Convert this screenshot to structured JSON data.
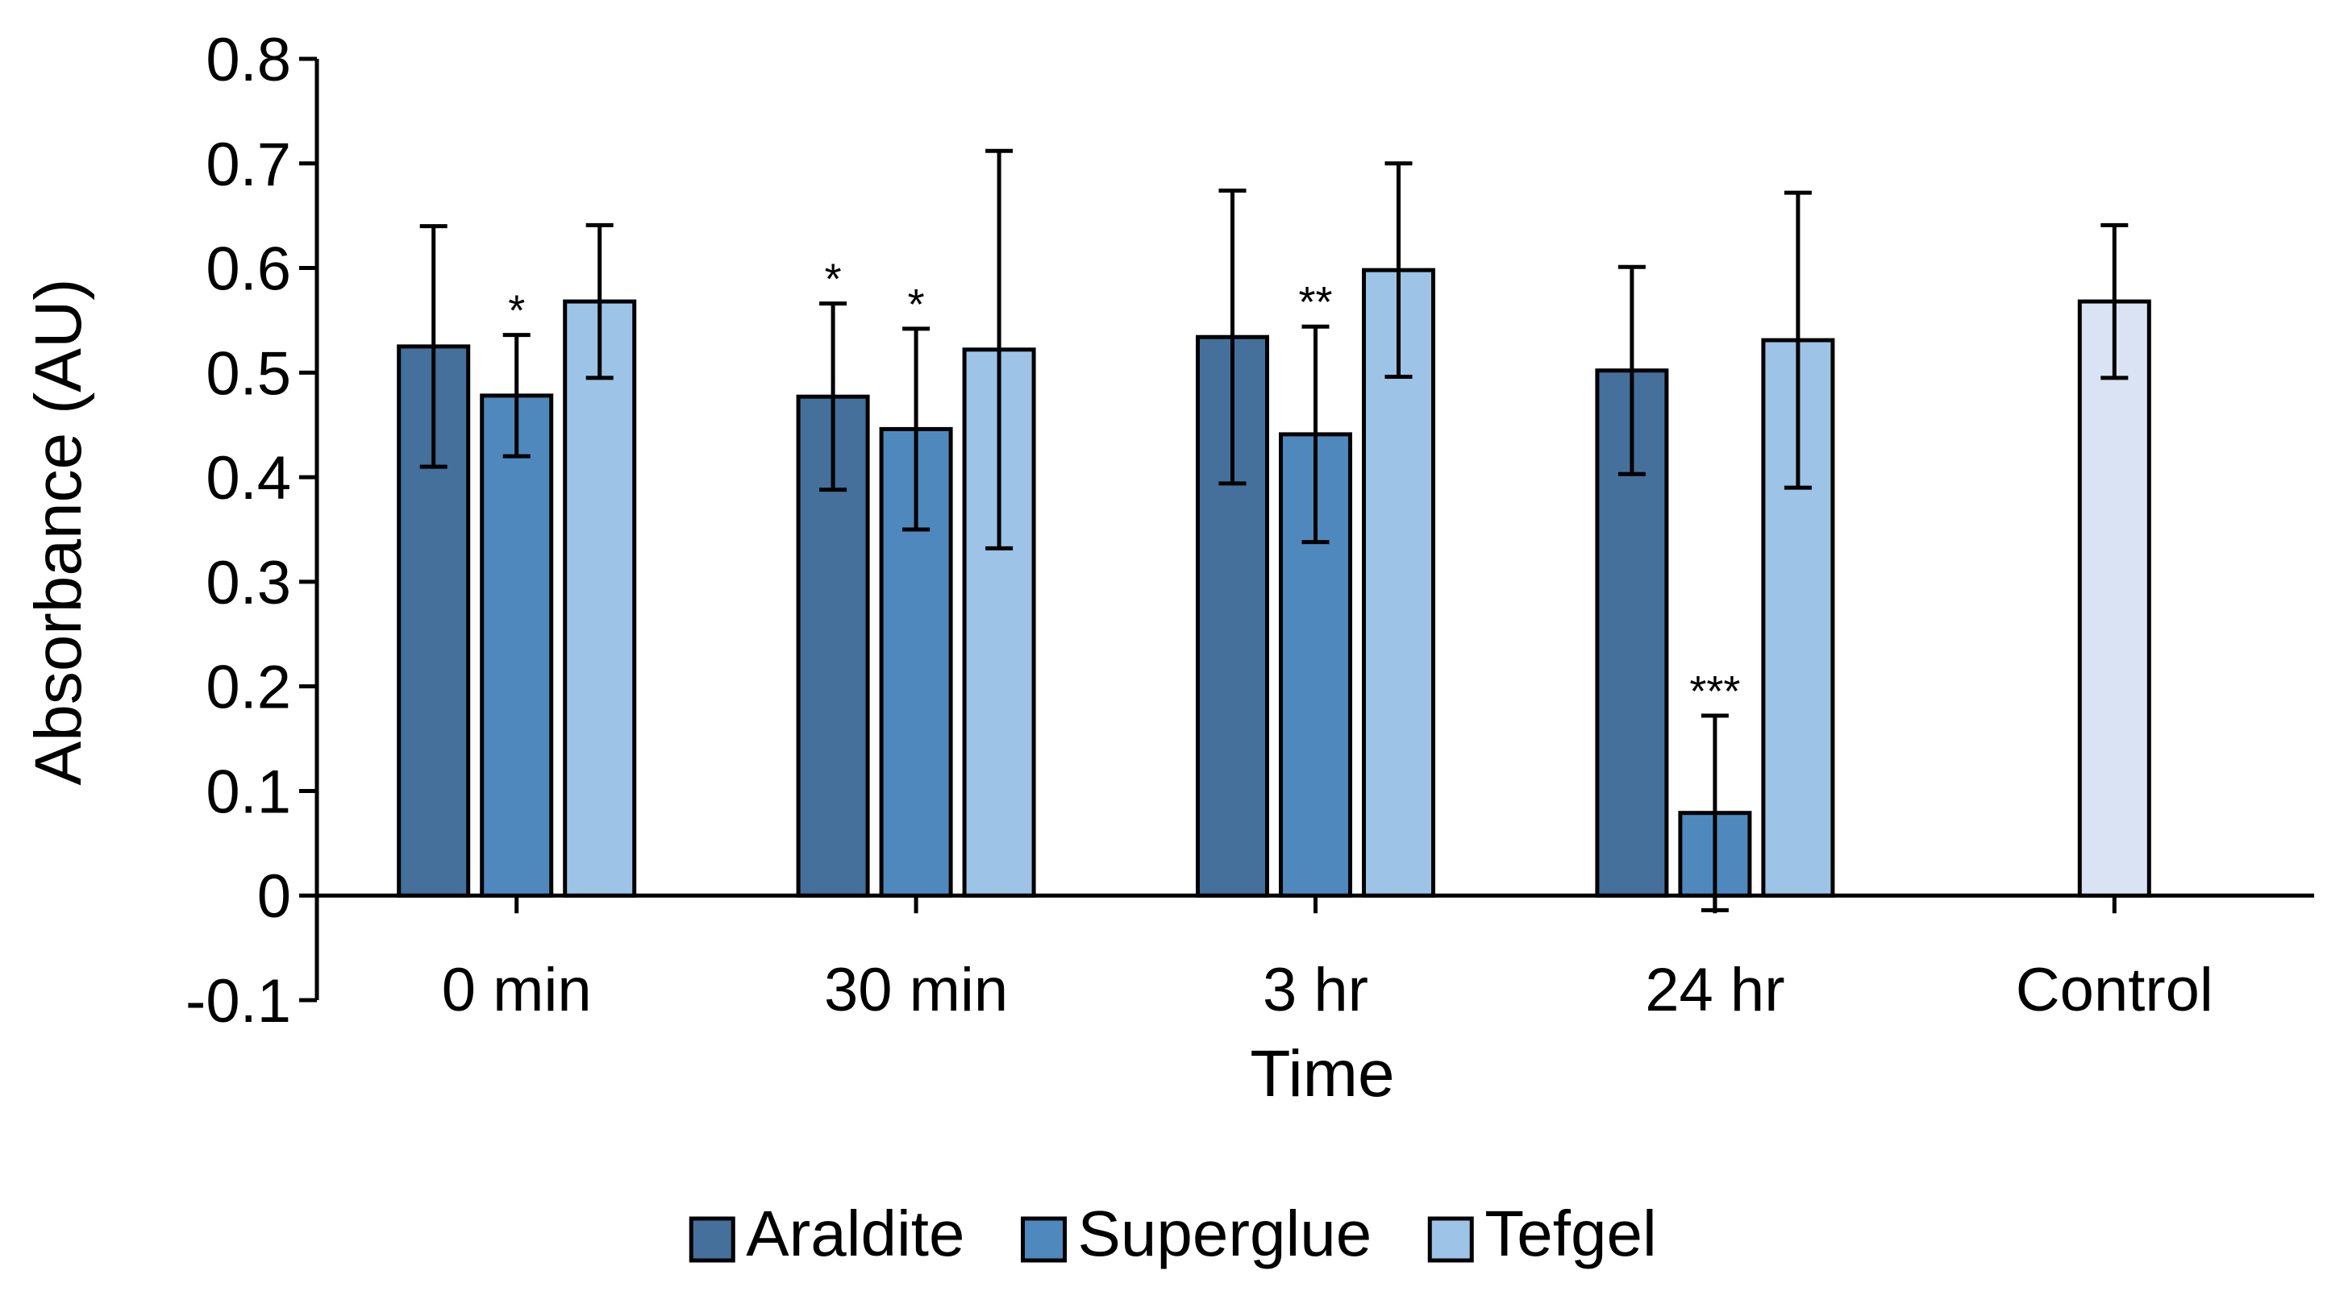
{
  "chart_data": {
    "type": "bar",
    "title": "",
    "xlabel": "Time",
    "ylabel": "Absorbance (AU)",
    "ylim": [
      -0.1,
      0.8
    ],
    "yticks": [
      -0.1,
      0,
      0.1,
      0.2,
      0.3,
      0.4,
      0.5,
      0.6,
      0.7,
      0.8
    ],
    "ytick_labels": [
      "-0.1",
      "0",
      "0.1",
      "0.2",
      "0.3",
      "0.4",
      "0.5",
      "0.6",
      "0.7",
      "0.8"
    ],
    "grid": false,
    "legend_position": "bottom",
    "categories": [
      "0 min",
      "30 min",
      "3 hr",
      "24 hr",
      "Control"
    ],
    "series": [
      {
        "name": "Araldite",
        "color": "#44709b",
        "values": [
          0.525,
          0.477,
          0.534,
          0.502,
          null
        ],
        "errors": [
          0.115,
          0.089,
          0.14,
          0.099,
          null
        ],
        "annotations": [
          "",
          "*",
          "",
          "",
          ""
        ]
      },
      {
        "name": "Superglue",
        "color": "#4f88bd",
        "values": [
          0.478,
          0.446,
          0.441,
          0.079,
          null
        ],
        "errors": [
          0.058,
          0.096,
          0.103,
          0.093,
          null
        ],
        "annotations": [
          "*",
          "*",
          "**",
          "***",
          ""
        ]
      },
      {
        "name": "Tefgel",
        "color": "#9dc3e6",
        "values": [
          0.568,
          0.522,
          0.598,
          0.531,
          null
        ],
        "errors": [
          0.073,
          0.19,
          0.102,
          0.141,
          null
        ],
        "annotations": [
          "",
          "",
          "",
          "",
          ""
        ]
      }
    ],
    "control": {
      "category": "Control",
      "color": "#dae3f3",
      "value": 0.568,
      "error": 0.073
    }
  }
}
